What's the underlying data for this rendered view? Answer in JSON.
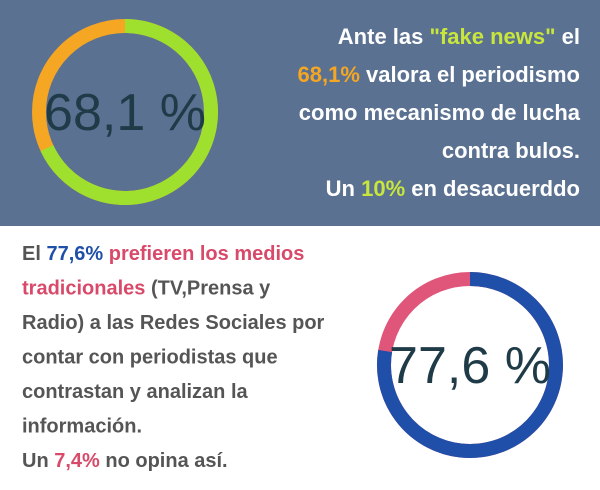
{
  "top": {
    "donut": {
      "value": 68.1,
      "center_label": "68,1 %",
      "color": "#9fe02e",
      "rest_color": "#f5a623"
    },
    "background": "#5a7191",
    "lines": [
      [
        {
          "text": "Ante las ",
          "color": "#ffffff"
        },
        {
          "text": "\"fake news\"",
          "color": "#c8e63c"
        },
        {
          "text": " el",
          "color": "#ffffff"
        }
      ],
      [
        {
          "text": "68,1%",
          "color": "#f5a623"
        },
        {
          "text": " valora el periodismo",
          "color": "#ffffff"
        }
      ],
      [
        {
          "text": "como mecanismo de lucha",
          "color": "#ffffff"
        }
      ],
      [
        {
          "text": "contra bulos.",
          "color": "#ffffff"
        }
      ],
      [
        {
          "text": "Un ",
          "color": "#ffffff"
        },
        {
          "text": "10%",
          "color": "#c8e63c"
        },
        {
          "text": " en desacuerddo",
          "color": "#ffffff"
        }
      ]
    ]
  },
  "bottom": {
    "donut": {
      "value": 77.6,
      "center_label": "77,6 %",
      "color": "#1f4fa8",
      "rest_color": "#e0567a"
    },
    "background": "#ffffff",
    "lines": [
      [
        {
          "text": "El ",
          "color": "#555555"
        },
        {
          "text": "77,6%",
          "color": "#1f4fa8"
        },
        {
          "text": " prefieren los medios",
          "color": "#d94a6a"
        }
      ],
      [
        {
          "text": "tradicionales",
          "color": "#d94a6a"
        },
        {
          "text": " (TV,Prensa y",
          "color": "#555555"
        }
      ],
      [
        {
          "text": "Radio) a las Redes Sociales por",
          "color": "#555555"
        }
      ],
      [
        {
          "text": "contar con periodistas que",
          "color": "#555555"
        }
      ],
      [
        {
          "text": "contrastan y analizan la",
          "color": "#555555"
        }
      ],
      [
        {
          "text": "información.",
          "color": "#555555"
        }
      ],
      [
        {
          "text": "Un ",
          "color": "#555555"
        },
        {
          "text": "7,4%",
          "color": "#d94a6a"
        },
        {
          "text": " no opina así.",
          "color": "#555555"
        }
      ]
    ]
  }
}
